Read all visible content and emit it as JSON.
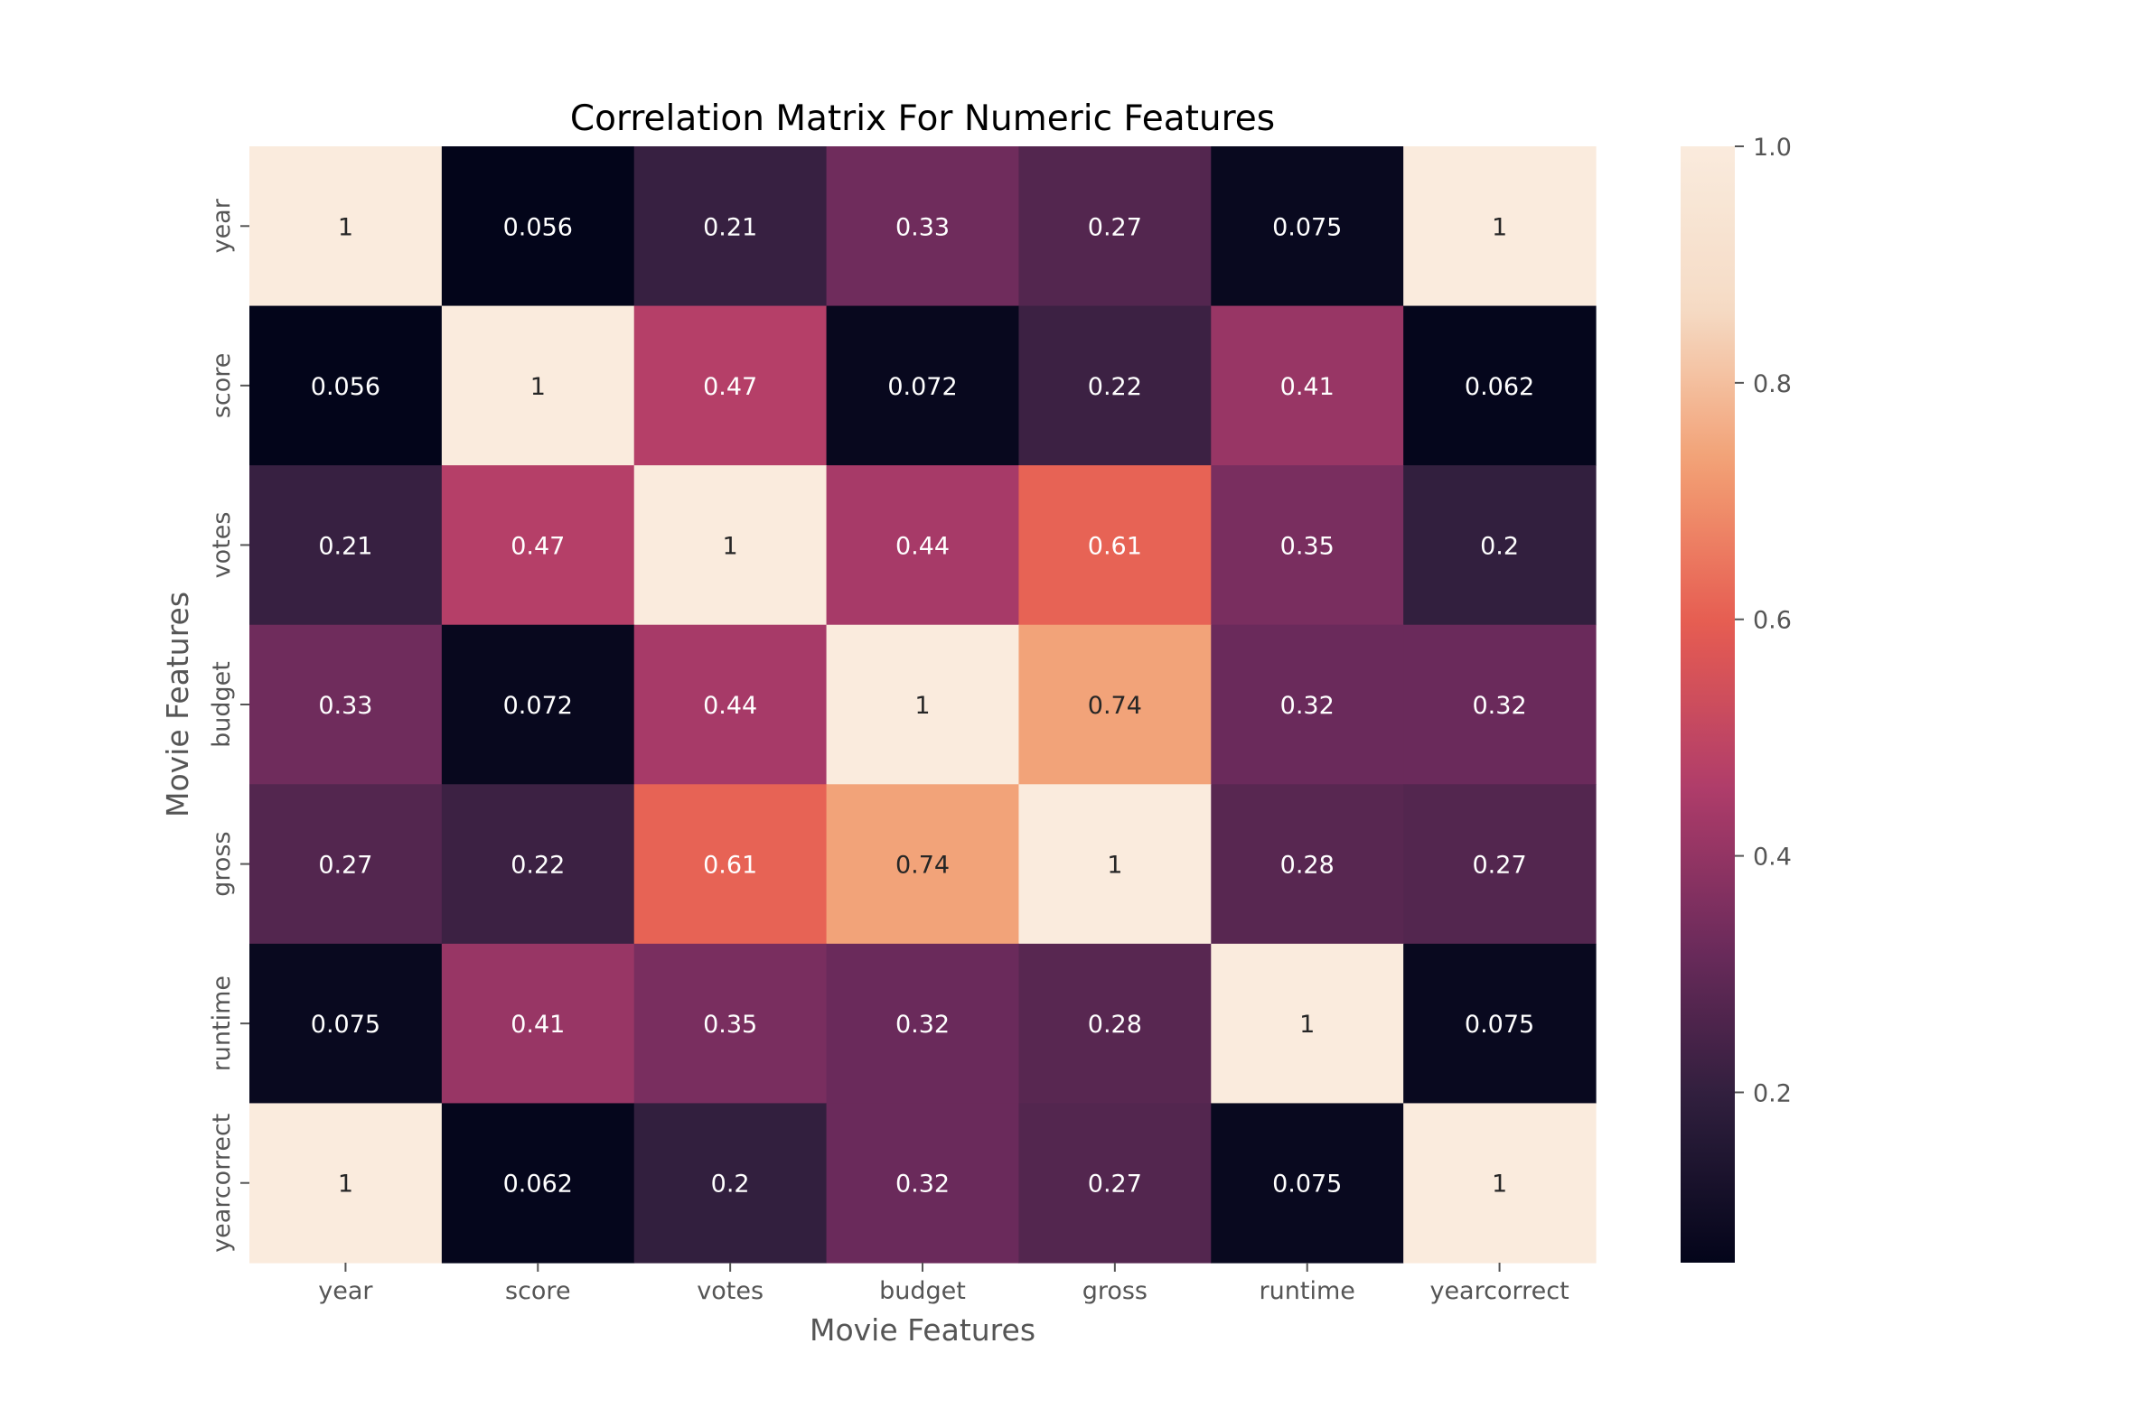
{
  "chart_data": {
    "type": "heatmap",
    "title": "Correlation Matrix For Numeric Features",
    "xlabel": "Movie Features",
    "ylabel": "Movie Features",
    "rows": [
      "year",
      "score",
      "votes",
      "budget",
      "gross",
      "runtime",
      "yearcorrect"
    ],
    "columns": [
      "year",
      "score",
      "votes",
      "budget",
      "gross",
      "runtime",
      "yearcorrect"
    ],
    "values": [
      [
        1,
        0.056,
        0.21,
        0.33,
        0.27,
        0.075,
        1
      ],
      [
        0.056,
        1,
        0.47,
        0.072,
        0.22,
        0.41,
        0.062
      ],
      [
        0.21,
        0.47,
        1,
        0.44,
        0.61,
        0.35,
        0.2
      ],
      [
        0.33,
        0.072,
        0.44,
        1,
        0.74,
        0.32,
        0.32
      ],
      [
        0.27,
        0.22,
        0.61,
        0.74,
        1,
        0.28,
        0.27
      ],
      [
        0.075,
        0.41,
        0.35,
        0.32,
        0.28,
        1,
        0.075
      ],
      [
        1,
        0.062,
        0.2,
        0.32,
        0.27,
        0.075,
        1
      ]
    ],
    "value_labels": [
      [
        "1",
        "0.056",
        "0.21",
        "0.33",
        "0.27",
        "0.075",
        "1"
      ],
      [
        "0.056",
        "1",
        "0.47",
        "0.072",
        "0.22",
        "0.41",
        "0.062"
      ],
      [
        "0.21",
        "0.47",
        "1",
        "0.44",
        "0.61",
        "0.35",
        "0.2"
      ],
      [
        "0.33",
        "0.072",
        "0.44",
        "1",
        "0.74",
        "0.32",
        "0.32"
      ],
      [
        "0.27",
        "0.22",
        "0.61",
        "0.74",
        "1",
        "0.28",
        "0.27"
      ],
      [
        "0.075",
        "0.41",
        "0.35",
        "0.32",
        "0.28",
        "1",
        "0.075"
      ],
      [
        "1",
        "0.062",
        "0.2",
        "0.32",
        "0.27",
        "0.075",
        "1"
      ]
    ],
    "colorscale": "rocket",
    "vmin": 0.056,
    "vmax": 1,
    "colorbar_ticks": [
      0.2,
      0.4,
      0.6,
      0.8,
      1.0
    ],
    "colorbar_tick_labels": [
      "0.2",
      "0.4",
      "0.6",
      "0.8",
      "1.0"
    ],
    "colorscale_stops": [
      "#03051a",
      "#2e1e3c",
      "#6d2b5c",
      "#b13d6a",
      "#e65c51",
      "#f29f73",
      "#f5dcc6",
      "#faebdd"
    ]
  }
}
